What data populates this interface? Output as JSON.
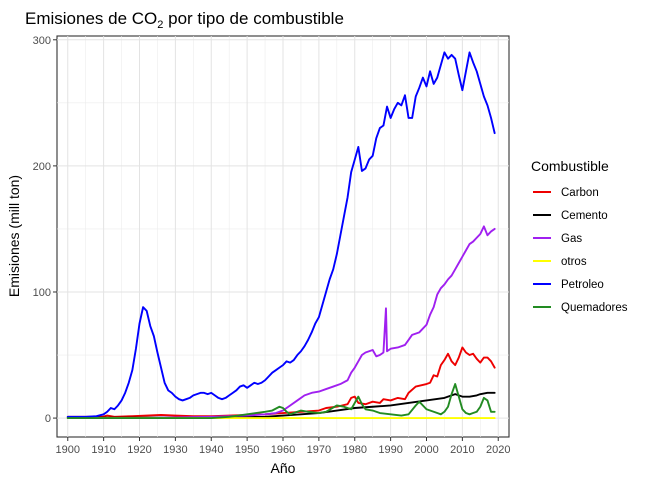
{
  "chart_data": {
    "type": "line",
    "title_main": "Emisiones de CO",
    "title_sub": "2",
    "title_rest": " por tipo de combustible",
    "xlabel": "Año",
    "ylabel": "Emisiones (mill ton)",
    "xlim": [
      1897,
      2023
    ],
    "ylim": [
      -15,
      303
    ],
    "xticks": [
      1900,
      1910,
      1920,
      1930,
      1940,
      1950,
      1960,
      1970,
      1980,
      1990,
      2000,
      2010,
      2020
    ],
    "yticks": [
      0,
      100,
      200,
      300
    ],
    "grid": true,
    "legend_title": "Combustible",
    "legend_position": "right",
    "series": [
      {
        "name": "Carbon",
        "color": "#ee0000",
        "points": [
          [
            1900,
            1
          ],
          [
            1905,
            1
          ],
          [
            1910,
            1.2
          ],
          [
            1911,
            2
          ],
          [
            1913,
            1
          ],
          [
            1918,
            1.5
          ],
          [
            1922,
            2
          ],
          [
            1926,
            2.5
          ],
          [
            1930,
            2
          ],
          [
            1935,
            1.5
          ],
          [
            1940,
            1.5
          ],
          [
            1945,
            2
          ],
          [
            1950,
            2.5
          ],
          [
            1955,
            3
          ],
          [
            1960,
            4
          ],
          [
            1965,
            5
          ],
          [
            1970,
            6
          ],
          [
            1972,
            8
          ],
          [
            1975,
            9
          ],
          [
            1978,
            11
          ],
          [
            1979,
            16
          ],
          [
            1980,
            17
          ],
          [
            1981,
            12
          ],
          [
            1983,
            11
          ],
          [
            1985,
            13
          ],
          [
            1987,
            12
          ],
          [
            1988,
            15
          ],
          [
            1990,
            14
          ],
          [
            1992,
            16
          ],
          [
            1994,
            15
          ],
          [
            1995,
            20
          ],
          [
            1997,
            25
          ],
          [
            2000,
            27
          ],
          [
            2001,
            28
          ],
          [
            2002,
            34
          ],
          [
            2003,
            33
          ],
          [
            2004,
            42
          ],
          [
            2005,
            46
          ],
          [
            2006,
            51
          ],
          [
            2007,
            45
          ],
          [
            2008,
            42
          ],
          [
            2009,
            48
          ],
          [
            2010,
            56
          ],
          [
            2011,
            52
          ],
          [
            2012,
            50
          ],
          [
            2013,
            51
          ],
          [
            2014,
            47
          ],
          [
            2015,
            44
          ],
          [
            2016,
            48
          ],
          [
            2017,
            48
          ],
          [
            2018,
            45
          ],
          [
            2019,
            40
          ]
        ]
      },
      {
        "name": "Cemento",
        "color": "#000000",
        "points": [
          [
            1900,
            0.3
          ],
          [
            1920,
            0.3
          ],
          [
            1940,
            0.5
          ],
          [
            1950,
            0.8
          ],
          [
            1955,
            1
          ],
          [
            1960,
            2
          ],
          [
            1965,
            3
          ],
          [
            1970,
            4
          ],
          [
            1975,
            6
          ],
          [
            1980,
            8
          ],
          [
            1985,
            9
          ],
          [
            1990,
            10
          ],
          [
            1995,
            12
          ],
          [
            2000,
            14
          ],
          [
            2005,
            16
          ],
          [
            2008,
            19
          ],
          [
            2010,
            17
          ],
          [
            2012,
            17
          ],
          [
            2014,
            18
          ],
          [
            2015,
            19
          ],
          [
            2017,
            20
          ],
          [
            2019,
            20
          ]
        ]
      },
      {
        "name": "Gas",
        "color": "#a020f0",
        "points": [
          [
            1900,
            0
          ],
          [
            1920,
            0
          ],
          [
            1930,
            0.5
          ],
          [
            1940,
            1
          ],
          [
            1950,
            2
          ],
          [
            1955,
            3
          ],
          [
            1958,
            4
          ],
          [
            1960,
            6
          ],
          [
            1962,
            10
          ],
          [
            1964,
            14
          ],
          [
            1966,
            18
          ],
          [
            1968,
            20
          ],
          [
            1970,
            21
          ],
          [
            1972,
            23
          ],
          [
            1974,
            25
          ],
          [
            1976,
            27
          ],
          [
            1978,
            30
          ],
          [
            1979,
            36
          ],
          [
            1980,
            40
          ],
          [
            1981,
            45
          ],
          [
            1982,
            50
          ],
          [
            1983,
            52
          ],
          [
            1984,
            53
          ],
          [
            1985,
            54
          ],
          [
            1986,
            49
          ],
          [
            1987,
            50
          ],
          [
            1988,
            52
          ],
          [
            1988.7,
            87
          ],
          [
            1989,
            53
          ],
          [
            1990,
            55
          ],
          [
            1992,
            56
          ],
          [
            1994,
            58
          ],
          [
            1995,
            62
          ],
          [
            1996,
            66
          ],
          [
            1998,
            68
          ],
          [
            2000,
            74
          ],
          [
            2001,
            82
          ],
          [
            2002,
            88
          ],
          [
            2003,
            98
          ],
          [
            2004,
            103
          ],
          [
            2005,
            106
          ],
          [
            2006,
            110
          ],
          [
            2007,
            113
          ],
          [
            2008,
            118
          ],
          [
            2009,
            123
          ],
          [
            2010,
            128
          ],
          [
            2011,
            133
          ],
          [
            2012,
            138
          ],
          [
            2013,
            140
          ],
          [
            2014,
            143
          ],
          [
            2015,
            146
          ],
          [
            2016,
            152
          ],
          [
            2017,
            145
          ],
          [
            2018,
            148
          ],
          [
            2019,
            150
          ]
        ]
      },
      {
        "name": "otros",
        "color": "#ffff00",
        "points": [
          [
            1900,
            0
          ],
          [
            2019,
            0
          ]
        ]
      },
      {
        "name": "Petroleo",
        "color": "#0000ff",
        "points": [
          [
            1900,
            1
          ],
          [
            1905,
            1
          ],
          [
            1908,
            1.5
          ],
          [
            1910,
            3
          ],
          [
            1911,
            5
          ],
          [
            1912,
            8
          ],
          [
            1913,
            7
          ],
          [
            1914,
            10
          ],
          [
            1915,
            14
          ],
          [
            1916,
            20
          ],
          [
            1917,
            28
          ],
          [
            1918,
            38
          ],
          [
            1919,
            55
          ],
          [
            1920,
            75
          ],
          [
            1921,
            88
          ],
          [
            1922,
            85
          ],
          [
            1923,
            73
          ],
          [
            1924,
            65
          ],
          [
            1925,
            52
          ],
          [
            1926,
            40
          ],
          [
            1927,
            28
          ],
          [
            1928,
            22
          ],
          [
            1929,
            20
          ],
          [
            1930,
            17
          ],
          [
            1931,
            15
          ],
          [
            1932,
            14
          ],
          [
            1933,
            15
          ],
          [
            1934,
            16
          ],
          [
            1935,
            18
          ],
          [
            1936,
            19
          ],
          [
            1937,
            20
          ],
          [
            1938,
            20
          ],
          [
            1939,
            19
          ],
          [
            1940,
            20
          ],
          [
            1941,
            18
          ],
          [
            1942,
            16
          ],
          [
            1943,
            15
          ],
          [
            1944,
            16
          ],
          [
            1945,
            18
          ],
          [
            1946,
            20
          ],
          [
            1947,
            22
          ],
          [
            1948,
            25
          ],
          [
            1949,
            26
          ],
          [
            1950,
            24
          ],
          [
            1951,
            26
          ],
          [
            1952,
            28
          ],
          [
            1953,
            27
          ],
          [
            1954,
            28
          ],
          [
            1955,
            30
          ],
          [
            1956,
            33
          ],
          [
            1957,
            36
          ],
          [
            1958,
            38
          ],
          [
            1959,
            40
          ],
          [
            1960,
            42
          ],
          [
            1961,
            45
          ],
          [
            1962,
            44
          ],
          [
            1963,
            46
          ],
          [
            1964,
            50
          ],
          [
            1965,
            53
          ],
          [
            1966,
            57
          ],
          [
            1967,
            62
          ],
          [
            1968,
            68
          ],
          [
            1969,
            75
          ],
          [
            1970,
            80
          ],
          [
            1971,
            90
          ],
          [
            1972,
            100
          ],
          [
            1973,
            110
          ],
          [
            1974,
            118
          ],
          [
            1975,
            130
          ],
          [
            1976,
            145
          ],
          [
            1977,
            160
          ],
          [
            1978,
            175
          ],
          [
            1979,
            195
          ],
          [
            1980,
            205
          ],
          [
            1981,
            215
          ],
          [
            1982,
            196
          ],
          [
            1983,
            198
          ],
          [
            1984,
            205
          ],
          [
            1985,
            208
          ],
          [
            1986,
            222
          ],
          [
            1987,
            230
          ],
          [
            1988,
            232
          ],
          [
            1989,
            247
          ],
          [
            1990,
            238
          ],
          [
            1991,
            245
          ],
          [
            1992,
            250
          ],
          [
            1993,
            248
          ],
          [
            1994,
            256
          ],
          [
            1995,
            238
          ],
          [
            1996,
            238
          ],
          [
            1997,
            255
          ],
          [
            1998,
            262
          ],
          [
            1999,
            270
          ],
          [
            2000,
            263
          ],
          [
            2001,
            275
          ],
          [
            2002,
            265
          ],
          [
            2003,
            270
          ],
          [
            2004,
            280
          ],
          [
            2005,
            290
          ],
          [
            2006,
            285
          ],
          [
            2007,
            288
          ],
          [
            2008,
            285
          ],
          [
            2009,
            272
          ],
          [
            2010,
            260
          ],
          [
            2011,
            275
          ],
          [
            2012,
            290
          ],
          [
            2013,
            282
          ],
          [
            2014,
            275
          ],
          [
            2015,
            265
          ],
          [
            2016,
            255
          ],
          [
            2017,
            248
          ],
          [
            2018,
            238
          ],
          [
            2019,
            226
          ]
        ]
      },
      {
        "name": "Quemadores",
        "color": "#228b22",
        "points": [
          [
            1900,
            0
          ],
          [
            1940,
            0
          ],
          [
            1945,
            1
          ],
          [
            1950,
            3
          ],
          [
            1955,
            5
          ],
          [
            1957,
            6
          ],
          [
            1959,
            9
          ],
          [
            1960,
            8
          ],
          [
            1961,
            5
          ],
          [
            1962,
            3
          ],
          [
            1963,
            4
          ],
          [
            1965,
            6
          ],
          [
            1967,
            5
          ],
          [
            1970,
            4
          ],
          [
            1972,
            5
          ],
          [
            1975,
            10
          ],
          [
            1977,
            9
          ],
          [
            1979,
            7
          ],
          [
            1980,
            12
          ],
          [
            1981,
            17
          ],
          [
            1982,
            11
          ],
          [
            1983,
            7
          ],
          [
            1985,
            6
          ],
          [
            1987,
            4
          ],
          [
            1990,
            3
          ],
          [
            1993,
            2
          ],
          [
            1995,
            3
          ],
          [
            1997,
            10
          ],
          [
            1998,
            13
          ],
          [
            1999,
            10
          ],
          [
            2000,
            7
          ],
          [
            2001,
            6
          ],
          [
            2003,
            4
          ],
          [
            2004,
            3
          ],
          [
            2005,
            5
          ],
          [
            2006,
            9
          ],
          [
            2007,
            19
          ],
          [
            2008,
            27
          ],
          [
            2009,
            17
          ],
          [
            2010,
            7
          ],
          [
            2011,
            4
          ],
          [
            2012,
            3
          ],
          [
            2013,
            4
          ],
          [
            2014,
            5
          ],
          [
            2015,
            9
          ],
          [
            2016,
            16
          ],
          [
            2017,
            14
          ],
          [
            2018,
            5
          ],
          [
            2019,
            5
          ]
        ]
      }
    ]
  }
}
